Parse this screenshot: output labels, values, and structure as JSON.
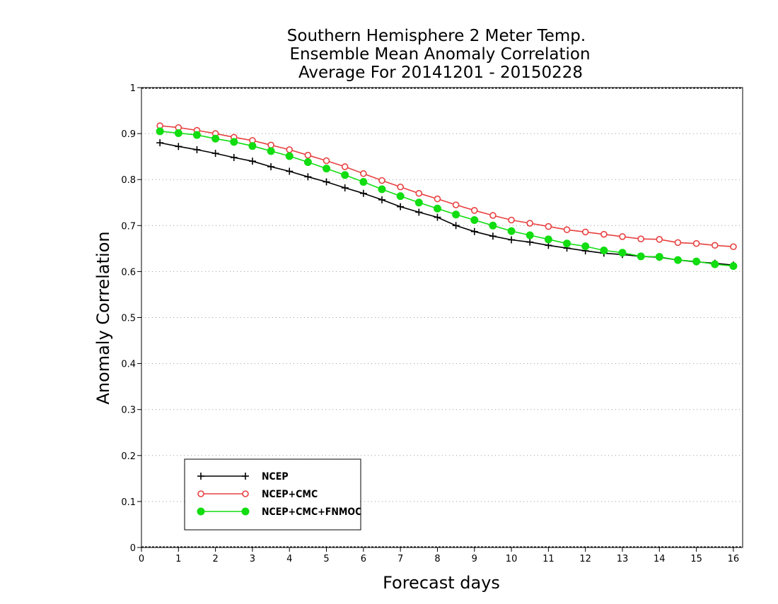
{
  "chart_data": {
    "type": "line",
    "title": [
      "Southern Hemisphere 2 Meter Temp.",
      "Ensemble Mean Anomaly Correlation",
      "Average For 20141201 - 20150228"
    ],
    "xlabel": "Forecast days",
    "ylabel": "Anomaly Correlation",
    "xlim": [
      0,
      16.25
    ],
    "ylim": [
      0,
      1
    ],
    "xticks": [
      "0",
      "1",
      "2",
      "3",
      "4",
      "5",
      "6",
      "7",
      "8",
      "9",
      "10",
      "11",
      "12",
      "13",
      "14",
      "15",
      "16"
    ],
    "yticks": [
      "0",
      "0.1",
      "0.2",
      "0.3",
      "0.4",
      "0.5",
      "0.6",
      "0.7",
      "0.8",
      "0.9",
      "1"
    ],
    "grid": "horizontal-dotted",
    "legend_position": "bottom-left",
    "x": [
      0.5,
      1,
      1.5,
      2,
      2.5,
      3,
      3.5,
      4,
      4.5,
      5,
      5.5,
      6,
      6.5,
      7,
      7.5,
      8,
      8.5,
      9,
      9.5,
      10,
      10.5,
      11,
      11.5,
      12,
      12.5,
      13,
      13.5,
      14,
      14.5,
      15,
      15.5,
      16
    ],
    "series": [
      {
        "name": "NCEP",
        "color": "#000000",
        "marker": "plus",
        "values": [
          0.88,
          0.872,
          0.865,
          0.857,
          0.848,
          0.84,
          0.828,
          0.818,
          0.806,
          0.795,
          0.782,
          0.77,
          0.756,
          0.741,
          0.729,
          0.718,
          0.7,
          0.687,
          0.677,
          0.669,
          0.664,
          0.657,
          0.651,
          0.645,
          0.64,
          0.637,
          0.633,
          0.631,
          0.625,
          0.621,
          0.618,
          0.614
        ]
      },
      {
        "name": "NCEP+CMC",
        "color": "#e84040",
        "marker": "open-circle",
        "values": [
          0.917,
          0.913,
          0.907,
          0.9,
          0.892,
          0.885,
          0.875,
          0.865,
          0.853,
          0.841,
          0.828,
          0.813,
          0.798,
          0.784,
          0.77,
          0.758,
          0.745,
          0.733,
          0.722,
          0.712,
          0.705,
          0.698,
          0.691,
          0.686,
          0.681,
          0.676,
          0.671,
          0.67,
          0.663,
          0.661,
          0.657,
          0.654
        ]
      },
      {
        "name": "NCEP+CMC+FNMOC",
        "color": "#11dd11",
        "marker": "filled-circle",
        "values": [
          0.905,
          0.901,
          0.897,
          0.889,
          0.882,
          0.873,
          0.862,
          0.851,
          0.838,
          0.824,
          0.81,
          0.795,
          0.779,
          0.764,
          0.75,
          0.737,
          0.724,
          0.712,
          0.7,
          0.688,
          0.679,
          0.67,
          0.661,
          0.655,
          0.646,
          0.641,
          0.633,
          0.632,
          0.625,
          0.622,
          0.616,
          0.612
        ]
      }
    ]
  }
}
